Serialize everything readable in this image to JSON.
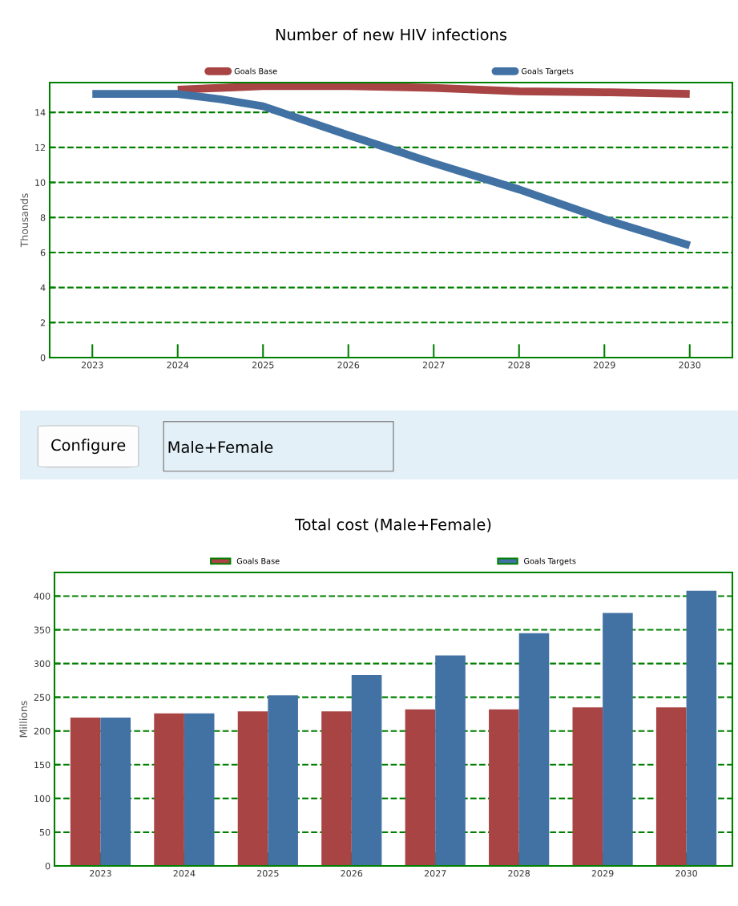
{
  "chart_data": [
    {
      "type": "line",
      "title": "Number of new HIV infections",
      "ylabel": "Thousands",
      "xlim": [
        2022.5,
        2030.5
      ],
      "xticks": [
        2023,
        2024,
        2025,
        2026,
        2027,
        2028,
        2029,
        2030
      ],
      "ylim": [
        0,
        15.7
      ],
      "yticks": [
        0,
        2,
        4,
        6,
        8,
        10,
        12,
        14
      ],
      "grid": "y",
      "legend": "top",
      "series": [
        {
          "name": "Goals Base",
          "color": "#a84444",
          "x": [
            2024,
            2024.5,
            2025,
            2026,
            2027,
            2028,
            2029,
            2030
          ],
          "values": [
            15.3,
            15.4,
            15.5,
            15.5,
            15.4,
            15.2,
            15.15,
            15.05
          ]
        },
        {
          "name": "Goals Targets",
          "color": "#4272a4",
          "x": [
            2023,
            2024,
            2024.5,
            2025,
            2026,
            2027,
            2028,
            2029,
            2030
          ],
          "values": [
            15.05,
            15.05,
            14.75,
            14.35,
            12.7,
            11.1,
            9.6,
            7.9,
            6.4
          ]
        }
      ]
    },
    {
      "type": "other",
      "annotations": [
        "Configure",
        "Male+Female"
      ]
    },
    {
      "type": "bar",
      "title": "Total cost (Male+Female)",
      "ylabel": "Millions",
      "categories": [
        "2023",
        "2024",
        "2025",
        "2026",
        "2027",
        "2028",
        "2029",
        "2030"
      ],
      "ylim": [
        0,
        435
      ],
      "yticks": [
        0,
        50,
        100,
        150,
        200,
        250,
        300,
        350,
        400
      ],
      "grid": "y",
      "legend": "top",
      "series": [
        {
          "name": "Goals Base",
          "color": "#a84444",
          "values": [
            220,
            226,
            229,
            229,
            232,
            232,
            235,
            235
          ]
        },
        {
          "name": "Goals Targets",
          "color": "#4272a4",
          "values": [
            220,
            226,
            253,
            283,
            312,
            345,
            375,
            408
          ]
        }
      ]
    }
  ]
}
